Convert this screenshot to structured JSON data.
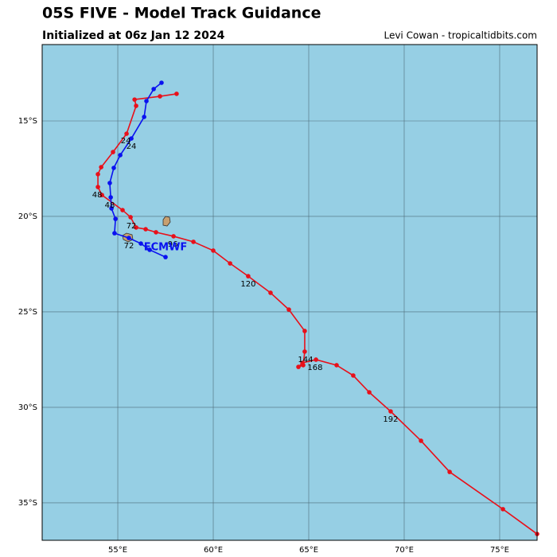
{
  "chart_data": {
    "type": "track",
    "title": "05S FIVE - Model Track Guidance",
    "subtitle": "Initialized at 06z Jan 12 2024",
    "credit": "Levi Cowan - tropicaltidbits.com",
    "xlim": [
      51.04,
      76.96
    ],
    "ylim": [
      -36.96,
      -11
    ],
    "xticks": [
      {
        "value": 55,
        "label": "55°E"
      },
      {
        "value": 60,
        "label": "60°E"
      },
      {
        "value": 65,
        "label": "65°E"
      },
      {
        "value": 70,
        "label": "70°E"
      },
      {
        "value": 75,
        "label": "75°E"
      }
    ],
    "yticks": [
      {
        "value": -15,
        "label": "15°S"
      },
      {
        "value": -20,
        "label": "20°S"
      },
      {
        "value": -25,
        "label": "25°S"
      },
      {
        "value": -30,
        "label": "30°S"
      },
      {
        "value": -35,
        "label": "35°S"
      }
    ],
    "grid": true,
    "background": "#96cfe4",
    "series": [
      {
        "color": "#e8101a",
        "x": [
          58.08,
          57.21,
          55.88,
          55.96,
          55.46,
          54.75,
          54.13,
          53.96,
          53.96,
          54.17,
          55.25,
          55.67,
          55.96,
          56.46,
          57.0,
          57.92,
          58.96,
          60.0,
          60.88,
          61.83,
          63.0,
          63.96,
          64.79,
          64.79,
          64.71,
          64.46,
          64.67,
          65.38,
          66.46,
          67.33,
          68.17,
          69.29,
          70.88,
          72.38,
          75.17,
          76.96
        ],
        "values": [
          -13.58,
          -13.71,
          -13.88,
          -14.21,
          -15.67,
          -16.63,
          -17.42,
          -17.79,
          -18.46,
          -18.88,
          -19.67,
          -20.04,
          -20.58,
          -20.67,
          -20.83,
          -21.04,
          -21.33,
          -21.79,
          -22.46,
          -23.13,
          -24.0,
          -24.88,
          -26.0,
          -27.08,
          -27.79,
          -27.88,
          -27.67,
          -27.5,
          -27.79,
          -28.33,
          -29.21,
          -30.21,
          -31.75,
          -33.38,
          -35.33,
          -36.63
        ]
      },
      {
        "name": "ECMWF",
        "color": "#0a12f0",
        "x": [
          57.29,
          56.88,
          56.5,
          56.38,
          55.71,
          55.13,
          54.79,
          54.58,
          54.63,
          54.67,
          54.88,
          54.83,
          55.58,
          56.21,
          56.67,
          57.5
        ],
        "values": [
          -13.0,
          -13.33,
          -13.96,
          -14.79,
          -15.92,
          -16.79,
          -17.46,
          -18.25,
          -19.0,
          -19.58,
          -20.13,
          -20.88,
          -21.13,
          -21.42,
          -21.75,
          -22.13
        ]
      }
    ],
    "annotations": [
      {
        "text": "24",
        "x": 55.42,
        "y": -16.04
      },
      {
        "text": "24",
        "x": 55.71,
        "y": -16.33
      },
      {
        "text": "48",
        "x": 53.92,
        "y": -18.88
      },
      {
        "text": "48",
        "x": 54.58,
        "y": -19.42
      },
      {
        "text": "72",
        "x": 55.71,
        "y": -20.5
      },
      {
        "text": "72",
        "x": 55.58,
        "y": -21.54
      },
      {
        "text": "96",
        "x": 57.88,
        "y": -21.46
      },
      {
        "text": "120",
        "x": 61.83,
        "y": -23.54
      },
      {
        "text": "144",
        "x": 64.83,
        "y": -27.5
      },
      {
        "text": "168",
        "x": 65.33,
        "y": -27.92
      },
      {
        "text": "192",
        "x": 69.29,
        "y": -30.63
      }
    ]
  }
}
